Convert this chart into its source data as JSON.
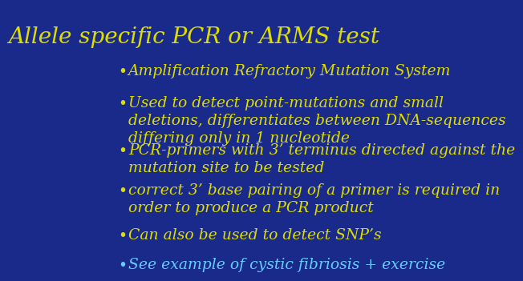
{
  "title": "Allele specific PCR or ARMS test",
  "title_color": "#DDDD00",
  "title_fontsize": 20,
  "background_color": "#1a2a8a",
  "bullet_color": "#DDDD00",
  "last_bullet_color": "#66CCFF",
  "bullet_fontsize": 13.5,
  "bullets": [
    "Amplification Refractory Mutation System",
    "Used to detect point-mutations and small\ndeletions, differentiates between DNA-sequences\ndiffering only in 1 nucleotide",
    "PCR-primers with 3’ terminus directed against the\nmutation site to be tested",
    "correct 3’ base pairing of a primer is required in\norder to produce a PCR product",
    "Can also be used to detect SNP’s",
    "See example of cystic fibriosis + exercise"
  ],
  "bullet_is_last": [
    false,
    false,
    false,
    false,
    false,
    true
  ]
}
